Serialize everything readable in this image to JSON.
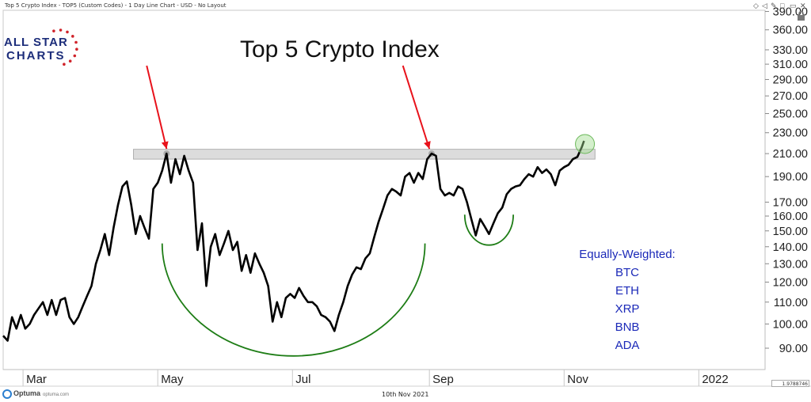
{
  "header": "Top 5 Crypto Index - TOP5 (Custom Codes) - 1 Day Line Chart - USD - No Layout",
  "window_controls": [
    "◇",
    "◁",
    "✎",
    "□",
    "▭",
    "✕"
  ],
  "logo": {
    "line1": "ALL STAR",
    "line2": "CHARTS"
  },
  "footer": {
    "brand": "Optuma",
    "site": "optuma.com",
    "date": "10th Nov 2021",
    "value_box": "1.9788746"
  },
  "legend": {
    "title": "Equally-Weighted:",
    "items": [
      "BTC",
      "ETH",
      "XRP",
      "BNB",
      "ADA"
    ]
  },
  "colors": {
    "price_line": "#000000",
    "arrow": "#e8121b",
    "arc": "#1e7d16",
    "zone": "#dcdcdc",
    "legend_text": "#1b29b8",
    "logo_blue": "#1c2d7a",
    "logo_red": "#d0232a",
    "breakout_circle": "#9fdc8f"
  },
  "chart_data": {
    "type": "line",
    "title": "Top 5 Crypto Index",
    "y_scale": "log",
    "ylim": [
      82,
      392
    ],
    "y_ticks": [
      90,
      100,
      110,
      120,
      130,
      140,
      150,
      160,
      170,
      190,
      210,
      230,
      250,
      270,
      290,
      310,
      330,
      360,
      390
    ],
    "x_ticks": [
      {
        "label": "Mar",
        "date": "2021-03-01"
      },
      {
        "label": "May",
        "date": "2021-05-01"
      },
      {
        "label": "Jul",
        "date": "2021-07-01"
      },
      {
        "label": "Sep",
        "date": "2021-09-01"
      },
      {
        "label": "Nov",
        "date": "2021-11-01"
      },
      {
        "label": "2022",
        "date": "2022-01-01"
      }
    ],
    "xlim": [
      "2021-02-20",
      "2022-01-31"
    ],
    "resistance_zone": {
      "start": "2021-04-20",
      "end": "2021-11-15",
      "low": 205,
      "high": 214
    },
    "series": [
      {
        "values": [
          [
            "2021-02-20",
            95
          ],
          [
            "2021-02-22",
            93
          ],
          [
            "2021-02-24",
            103
          ],
          [
            "2021-02-26",
            98
          ],
          [
            "2021-02-28",
            104
          ],
          [
            "2021-03-02",
            98
          ],
          [
            "2021-03-04",
            100
          ],
          [
            "2021-03-06",
            104
          ],
          [
            "2021-03-08",
            107
          ],
          [
            "2021-03-10",
            110
          ],
          [
            "2021-03-12",
            104
          ],
          [
            "2021-03-14",
            111
          ],
          [
            "2021-03-16",
            104
          ],
          [
            "2021-03-18",
            111
          ],
          [
            "2021-03-20",
            112
          ],
          [
            "2021-03-22",
            103
          ],
          [
            "2021-03-24",
            100
          ],
          [
            "2021-03-26",
            103
          ],
          [
            "2021-03-28",
            108
          ],
          [
            "2021-03-30",
            113
          ],
          [
            "2021-04-01",
            118
          ],
          [
            "2021-04-03",
            130
          ],
          [
            "2021-04-05",
            138
          ],
          [
            "2021-04-07",
            148
          ],
          [
            "2021-04-09",
            135
          ],
          [
            "2021-04-11",
            152
          ],
          [
            "2021-04-13",
            168
          ],
          [
            "2021-04-15",
            182
          ],
          [
            "2021-04-17",
            186
          ],
          [
            "2021-04-19",
            168
          ],
          [
            "2021-04-21",
            148
          ],
          [
            "2021-04-23",
            160
          ],
          [
            "2021-04-25",
            152
          ],
          [
            "2021-04-27",
            145
          ],
          [
            "2021-04-29",
            180
          ],
          [
            "2021-05-01",
            185
          ],
          [
            "2021-05-03",
            195
          ],
          [
            "2021-05-05",
            210
          ],
          [
            "2021-05-07",
            185
          ],
          [
            "2021-05-09",
            205
          ],
          [
            "2021-05-11",
            192
          ],
          [
            "2021-05-13",
            208
          ],
          [
            "2021-05-15",
            195
          ],
          [
            "2021-05-17",
            185
          ],
          [
            "2021-05-19",
            138
          ],
          [
            "2021-05-21",
            155
          ],
          [
            "2021-05-23",
            118
          ],
          [
            "2021-05-25",
            140
          ],
          [
            "2021-05-27",
            148
          ],
          [
            "2021-05-29",
            135
          ],
          [
            "2021-05-31",
            142
          ],
          [
            "2021-06-02",
            150
          ],
          [
            "2021-06-04",
            138
          ],
          [
            "2021-06-06",
            143
          ],
          [
            "2021-06-08",
            126
          ],
          [
            "2021-06-10",
            135
          ],
          [
            "2021-06-12",
            125
          ],
          [
            "2021-06-14",
            136
          ],
          [
            "2021-06-16",
            130
          ],
          [
            "2021-06-18",
            125
          ],
          [
            "2021-06-20",
            118
          ],
          [
            "2021-06-22",
            101
          ],
          [
            "2021-06-24",
            110
          ],
          [
            "2021-06-26",
            103
          ],
          [
            "2021-06-28",
            112
          ],
          [
            "2021-06-30",
            114
          ],
          [
            "2021-07-02",
            112
          ],
          [
            "2021-07-04",
            117
          ],
          [
            "2021-07-06",
            113
          ],
          [
            "2021-07-08",
            110
          ],
          [
            "2021-07-10",
            110
          ],
          [
            "2021-07-12",
            108
          ],
          [
            "2021-07-14",
            104
          ],
          [
            "2021-07-16",
            103
          ],
          [
            "2021-07-18",
            101
          ],
          [
            "2021-07-20",
            97
          ],
          [
            "2021-07-22",
            104
          ],
          [
            "2021-07-24",
            110
          ],
          [
            "2021-07-26",
            118
          ],
          [
            "2021-07-28",
            124
          ],
          [
            "2021-07-30",
            128
          ],
          [
            "2021-08-01",
            127
          ],
          [
            "2021-08-03",
            133
          ],
          [
            "2021-08-05",
            136
          ],
          [
            "2021-08-07",
            146
          ],
          [
            "2021-08-09",
            156
          ],
          [
            "2021-08-11",
            165
          ],
          [
            "2021-08-13",
            175
          ],
          [
            "2021-08-15",
            180
          ],
          [
            "2021-08-17",
            178
          ],
          [
            "2021-08-19",
            175
          ],
          [
            "2021-08-21",
            190
          ],
          [
            "2021-08-23",
            193
          ],
          [
            "2021-08-25",
            185
          ],
          [
            "2021-08-27",
            193
          ],
          [
            "2021-08-29",
            188
          ],
          [
            "2021-08-31",
            205
          ],
          [
            "2021-09-02",
            210
          ],
          [
            "2021-09-04",
            208
          ],
          [
            "2021-09-06",
            180
          ],
          [
            "2021-09-08",
            175
          ],
          [
            "2021-09-10",
            177
          ],
          [
            "2021-09-12",
            175
          ],
          [
            "2021-09-14",
            182
          ],
          [
            "2021-09-16",
            180
          ],
          [
            "2021-09-18",
            170
          ],
          [
            "2021-09-20",
            158
          ],
          [
            "2021-09-22",
            147
          ],
          [
            "2021-09-24",
            158
          ],
          [
            "2021-09-26",
            153
          ],
          [
            "2021-09-28",
            148
          ],
          [
            "2021-09-30",
            155
          ],
          [
            "2021-10-02",
            162
          ],
          [
            "2021-10-04",
            166
          ],
          [
            "2021-10-06",
            176
          ],
          [
            "2021-10-08",
            180
          ],
          [
            "2021-10-10",
            182
          ],
          [
            "2021-10-12",
            183
          ],
          [
            "2021-10-14",
            188
          ],
          [
            "2021-10-16",
            192
          ],
          [
            "2021-10-18",
            190
          ],
          [
            "2021-10-20",
            198
          ],
          [
            "2021-10-22",
            193
          ],
          [
            "2021-10-24",
            196
          ],
          [
            "2021-10-26",
            192
          ],
          [
            "2021-10-28",
            183
          ],
          [
            "2021-10-30",
            195
          ],
          [
            "2021-11-01",
            198
          ],
          [
            "2021-11-03",
            200
          ],
          [
            "2021-11-05",
            205
          ],
          [
            "2021-11-07",
            207
          ],
          [
            "2021-11-09",
            216
          ],
          [
            "2021-11-10",
            222
          ]
        ]
      }
    ]
  }
}
